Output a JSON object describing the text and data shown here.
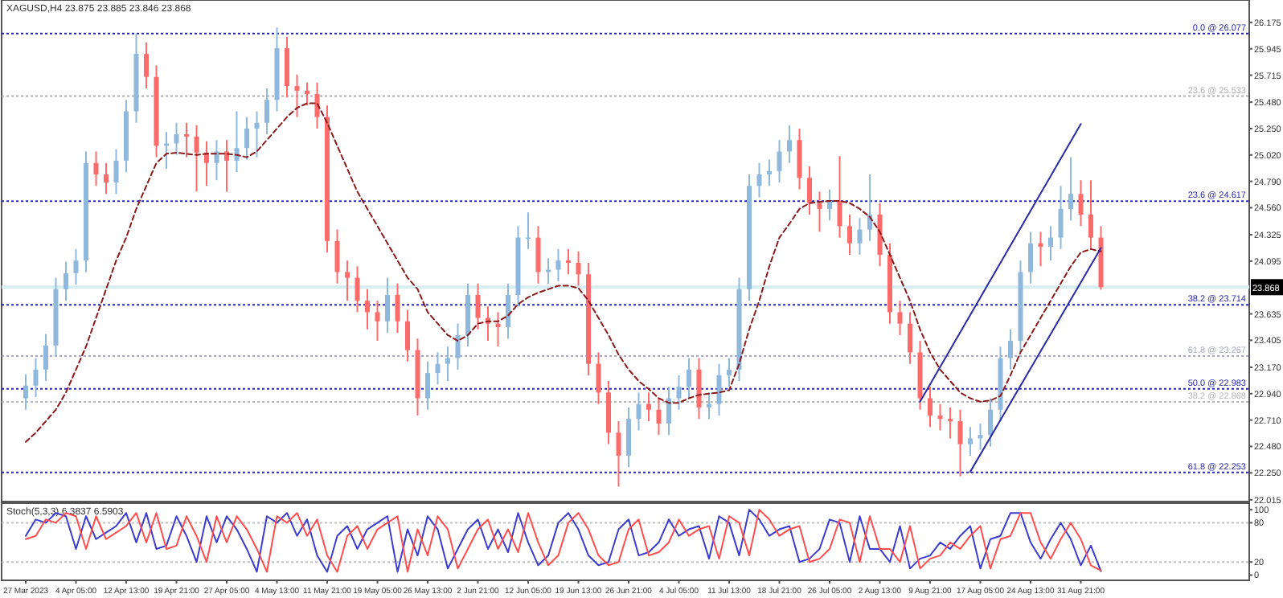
{
  "chart_data": [
    {
      "type": "candlestick",
      "title": "XAGUSD,H4 23.875 23.885 23.846 23.868",
      "categories": [
        null,
        null,
        null,
        null,
        null,
        null,
        null,
        null,
        null,
        null,
        null,
        null,
        null,
        null,
        null,
        null,
        null,
        null,
        null,
        null,
        null,
        null,
        null,
        null,
        null,
        null,
        null,
        null,
        null,
        null,
        null,
        null,
        null,
        null,
        null,
        null,
        null,
        null,
        null,
        null,
        null,
        null,
        null,
        null,
        null,
        null,
        null,
        null,
        null,
        null,
        null,
        null,
        null,
        null,
        null,
        null,
        null,
        null,
        null,
        null,
        null,
        null,
        null,
        null,
        null,
        null,
        null,
        null,
        null,
        null,
        null,
        null,
        null,
        null,
        null,
        null,
        null,
        null,
        null,
        null,
        null,
        null,
        null,
        null,
        null,
        null,
        null,
        null,
        null,
        null,
        null,
        null,
        null,
        null,
        null,
        null,
        null,
        null,
        null,
        null,
        null,
        null,
        null,
        null,
        null,
        null,
        null,
        null
      ],
      "ohlc": [
        [
          22.9,
          23.11,
          22.8,
          23.01
        ],
        [
          23.01,
          23.25,
          22.91,
          23.15
        ],
        [
          23.15,
          23.46,
          23.05,
          23.36
        ],
        [
          23.36,
          23.95,
          23.26,
          23.85
        ],
        [
          23.85,
          24.09,
          23.75,
          23.99
        ],
        [
          23.99,
          24.2,
          23.89,
          24.1
        ],
        [
          24.1,
          25.05,
          24.0,
          24.95
        ],
        [
          24.95,
          25.05,
          24.75,
          24.85
        ],
        [
          24.85,
          24.95,
          24.68,
          24.78
        ],
        [
          24.78,
          25.07,
          24.68,
          24.97
        ],
        [
          24.97,
          25.5,
          24.87,
          25.4
        ],
        [
          25.4,
          26.077,
          25.3,
          25.9
        ],
        [
          25.9,
          26.0,
          25.6,
          25.7
        ],
        [
          25.7,
          25.8,
          25.0,
          25.1
        ],
        [
          25.1,
          25.22,
          24.9,
          25.12
        ],
        [
          25.12,
          25.3,
          25.02,
          25.2
        ],
        [
          25.2,
          25.3,
          25.0,
          25.18
        ],
        [
          25.18,
          25.28,
          24.7,
          25.04
        ],
        [
          25.04,
          25.14,
          24.75,
          24.95
        ],
        [
          24.95,
          25.15,
          24.8,
          25.05
        ],
        [
          25.05,
          25.15,
          24.7,
          24.97
        ],
        [
          24.97,
          25.4,
          24.87,
          25.08
        ],
        [
          25.08,
          25.35,
          24.98,
          25.25
        ],
        [
          25.25,
          25.4,
          25.0,
          25.3
        ],
        [
          25.3,
          25.6,
          25.2,
          25.5
        ],
        [
          25.5,
          26.13,
          25.4,
          25.95
        ],
        [
          25.95,
          26.05,
          25.52,
          25.62
        ],
        [
          25.62,
          25.72,
          25.35,
          25.58
        ],
        [
          25.58,
          25.65,
          25.45,
          25.55
        ],
        [
          25.55,
          25.65,
          25.25,
          25.35
        ],
        [
          25.35,
          25.45,
          24.17,
          24.27
        ],
        [
          24.27,
          24.37,
          23.9,
          24.0
        ],
        [
          24.0,
          24.1,
          23.75,
          23.95
        ],
        [
          23.95,
          24.05,
          23.65,
          23.75
        ],
        [
          23.75,
          23.85,
          23.5,
          23.65
        ],
        [
          23.65,
          23.75,
          23.4,
          23.57
        ],
        [
          23.57,
          23.95,
          23.47,
          23.8
        ],
        [
          23.8,
          23.9,
          23.47,
          23.57
        ],
        [
          23.57,
          23.67,
          23.22,
          23.32
        ],
        [
          23.32,
          23.42,
          22.75,
          22.9
        ],
        [
          22.9,
          23.22,
          22.8,
          23.12
        ],
        [
          23.12,
          23.3,
          23.02,
          23.2
        ],
        [
          23.2,
          23.35,
          23.05,
          23.25
        ],
        [
          23.25,
          23.55,
          23.15,
          23.45
        ],
        [
          23.45,
          23.9,
          23.35,
          23.8
        ],
        [
          23.8,
          23.9,
          23.5,
          23.6
        ],
        [
          23.6,
          23.7,
          23.4,
          23.55
        ],
        [
          23.55,
          23.65,
          23.35,
          23.52
        ],
        [
          23.52,
          23.9,
          23.42,
          23.8
        ],
        [
          23.8,
          24.4,
          23.7,
          24.3
        ],
        [
          24.3,
          24.52,
          24.2,
          24.3
        ],
        [
          24.3,
          24.4,
          23.9,
          24.0
        ],
        [
          24.0,
          24.12,
          23.9,
          24.02
        ],
        [
          24.02,
          24.2,
          23.92,
          24.1
        ],
        [
          24.1,
          24.2,
          23.98,
          24.08
        ],
        [
          24.08,
          24.18,
          23.88,
          23.98
        ],
        [
          23.98,
          24.08,
          23.1,
          23.2
        ],
        [
          23.2,
          23.3,
          22.85,
          22.95
        ],
        [
          22.95,
          23.05,
          22.5,
          22.6
        ],
        [
          22.6,
          22.7,
          22.13,
          22.4
        ],
        [
          22.4,
          22.82,
          22.3,
          22.72
        ],
        [
          22.72,
          22.95,
          22.62,
          22.85
        ],
        [
          22.85,
          22.95,
          22.7,
          22.8
        ],
        [
          22.8,
          22.9,
          22.58,
          22.68
        ],
        [
          22.68,
          23.0,
          22.58,
          22.9
        ],
        [
          22.9,
          23.1,
          22.8,
          23.0
        ],
        [
          23.0,
          23.25,
          22.9,
          23.15
        ],
        [
          23.15,
          23.25,
          22.72,
          22.82
        ],
        [
          22.82,
          22.95,
          22.72,
          22.85
        ],
        [
          22.85,
          23.2,
          22.75,
          23.1
        ],
        [
          23.1,
          23.25,
          23.0,
          23.15
        ],
        [
          23.15,
          23.95,
          23.05,
          23.85
        ],
        [
          23.85,
          24.85,
          23.75,
          24.75
        ],
        [
          24.75,
          24.95,
          24.65,
          24.85
        ],
        [
          24.85,
          24.98,
          24.75,
          24.88
        ],
        [
          24.88,
          25.15,
          24.78,
          25.05
        ],
        [
          25.05,
          25.28,
          24.95,
          25.15
        ],
        [
          25.15,
          25.25,
          24.72,
          24.82
        ],
        [
          24.82,
          24.92,
          24.5,
          24.6
        ],
        [
          24.6,
          24.7,
          24.35,
          24.55
        ],
        [
          24.55,
          24.72,
          24.45,
          24.62
        ],
        [
          24.62,
          25.01,
          24.3,
          24.4
        ],
        [
          24.4,
          24.5,
          24.15,
          24.25
        ],
        [
          24.25,
          24.47,
          24.15,
          24.37
        ],
        [
          24.37,
          24.85,
          24.27,
          24.5
        ],
        [
          24.5,
          24.6,
          24.05,
          24.15
        ],
        [
          24.15,
          24.25,
          23.55,
          23.65
        ],
        [
          23.65,
          23.75,
          23.45,
          23.55
        ],
        [
          23.55,
          23.65,
          23.2,
          23.3
        ],
        [
          23.3,
          23.4,
          22.8,
          22.9
        ],
        [
          22.9,
          23.0,
          22.65,
          22.75
        ],
        [
          22.75,
          22.85,
          22.62,
          22.72
        ],
        [
          22.72,
          22.82,
          22.55,
          22.7
        ],
        [
          22.7,
          22.8,
          22.22,
          22.5
        ],
        [
          22.5,
          22.65,
          22.4,
          22.55
        ],
        [
          22.55,
          22.68,
          22.45,
          22.58
        ],
        [
          22.58,
          22.9,
          22.48,
          22.8
        ],
        [
          22.8,
          23.35,
          22.7,
          23.25
        ],
        [
          23.25,
          23.5,
          23.15,
          23.4
        ],
        [
          23.4,
          24.1,
          23.3,
          24.0
        ],
        [
          24.0,
          24.35,
          23.9,
          24.25
        ],
        [
          24.25,
          24.35,
          24.05,
          24.22
        ],
        [
          24.22,
          24.4,
          24.1,
          24.3
        ],
        [
          24.3,
          24.75,
          24.2,
          24.55
        ],
        [
          24.55,
          25.0,
          24.45,
          24.68
        ],
        [
          24.68,
          24.8,
          24.4,
          24.5
        ],
        [
          24.5,
          24.8,
          24.2,
          24.3
        ],
        [
          24.3,
          24.4,
          23.846,
          23.868
        ]
      ],
      "colors": [
        "#8fb8dc",
        "#8fb8dc",
        "#8fb8dc",
        "#8fb8dc",
        "#8fb8dc",
        "#8fb8dc",
        "#8fb8dc",
        "#ff6b6b",
        "#ff6b6b",
        "#8fb8dc",
        "#8fb8dc",
        "#8fb8dc",
        "#ff6b6b",
        "#ff6b6b",
        "#8fb8dc",
        "#8fb8dc",
        "#ff6b6b",
        "#ff6b6b",
        "#ff6b6b",
        "#8fb8dc",
        "#ff6b6b",
        "#8fb8dc",
        "#8fb8dc",
        "#8fb8dc",
        "#8fb8dc",
        "#8fb8dc",
        "#ff6b6b",
        "#ff6b6b",
        "#ff6b6b",
        "#ff6b6b",
        "#ff6b6b",
        "#ff6b6b",
        "#ff6b6b",
        "#ff6b6b",
        "#ff6b6b",
        "#ff6b6b",
        "#8fb8dc",
        "#ff6b6b",
        "#ff6b6b",
        "#ff6b6b",
        "#8fb8dc",
        "#8fb8dc",
        "#8fb8dc",
        "#8fb8dc",
        "#8fb8dc",
        "#ff6b6b",
        "#ff6b6b",
        "#ff6b6b",
        "#8fb8dc",
        "#8fb8dc",
        "#8fb8dc",
        "#ff6b6b",
        "#8fb8dc",
        "#8fb8dc",
        "#ff6b6b",
        "#ff6b6b",
        "#ff6b6b",
        "#ff6b6b",
        "#ff6b6b",
        "#ff6b6b",
        "#8fb8dc",
        "#8fb8dc",
        "#ff6b6b",
        "#ff6b6b",
        "#8fb8dc",
        "#8fb8dc",
        "#8fb8dc",
        "#ff6b6b",
        "#8fb8dc",
        "#8fb8dc",
        "#8fb8dc",
        "#8fb8dc",
        "#8fb8dc",
        "#8fb8dc",
        "#8fb8dc",
        "#8fb8dc",
        "#8fb8dc",
        "#ff6b6b",
        "#ff6b6b",
        "#ff6b6b",
        "#8fb8dc",
        "#ff6b6b",
        "#ff6b6b",
        "#8fb8dc",
        "#8fb8dc",
        "#ff6b6b",
        "#ff6b6b",
        "#ff6b6b",
        "#ff6b6b",
        "#ff6b6b",
        "#ff6b6b",
        "#ff6b6b",
        "#ff6b6b",
        "#ff6b6b",
        "#8fb8dc",
        "#8fb8dc",
        "#8fb8dc",
        "#8fb8dc",
        "#8fb8dc",
        "#8fb8dc",
        "#8fb8dc",
        "#ff6b6b",
        "#8fb8dc",
        "#8fb8dc",
        "#8fb8dc",
        "#ff6b6b",
        "#ff6b6b",
        "#ff6b6b"
      ],
      "series": [
        {
          "type": "line",
          "color": "#8b1a1a",
          "line_style": "dashed",
          "values": [
            22.52,
            22.6,
            22.7,
            22.8,
            22.95,
            23.15,
            23.35,
            23.6,
            23.85,
            24.1,
            24.3,
            24.55,
            24.75,
            24.95,
            25.03,
            25.04,
            25.03,
            25.02,
            25.03,
            25.03,
            25.03,
            25.02,
            25.0,
            25.05,
            25.15,
            25.25,
            25.35,
            25.43,
            25.47,
            25.47,
            25.3,
            25.1,
            24.9,
            24.7,
            24.55,
            24.4,
            24.25,
            24.1,
            23.95,
            23.85,
            23.65,
            23.55,
            23.45,
            23.4,
            23.45,
            23.55,
            23.57,
            23.57,
            23.62,
            23.72,
            23.78,
            23.82,
            23.85,
            23.88,
            23.88,
            23.86,
            23.75,
            23.6,
            23.45,
            23.28,
            23.15,
            23.05,
            22.98,
            22.9,
            22.86,
            22.86,
            22.9,
            22.93,
            22.94,
            22.95,
            22.97,
            23.2,
            23.5,
            23.75,
            24.05,
            24.3,
            24.42,
            24.55,
            24.6,
            24.61,
            24.62,
            24.62,
            24.6,
            24.55,
            24.48,
            24.35,
            24.15,
            23.95,
            23.75,
            23.5,
            23.3,
            23.15,
            23.05,
            22.95,
            22.9,
            22.87,
            22.88,
            22.92,
            23.1,
            23.3,
            23.45,
            23.6,
            23.75,
            23.9,
            24.05,
            24.17,
            24.2,
            24.18
          ]
        },
        {
          "type": "line",
          "color": "#2a2aa8",
          "values": [
            null,
            null,
            null,
            null,
            null,
            null,
            null,
            null,
            null,
            null,
            null,
            null,
            null,
            null,
            null,
            null,
            null,
            null,
            null,
            null,
            null,
            null,
            null,
            null,
            null,
            null,
            null,
            null,
            null,
            null,
            null,
            null,
            null,
            null,
            null,
            null,
            null,
            null,
            null,
            null,
            null,
            null,
            null,
            null,
            null,
            null,
            null,
            null,
            null,
            null,
            null,
            null,
            null,
            null,
            null,
            null,
            null,
            null,
            null,
            null,
            null,
            null,
            null,
            null,
            null,
            null,
            null,
            null,
            null,
            null,
            null,
            null,
            null,
            null,
            null,
            null,
            null,
            null,
            null,
            null,
            null,
            null,
            null,
            null,
            null,
            null,
            null,
            null,
            null,
            22.87,
            null,
            null,
            null,
            null,
            null,
            null,
            null,
            null,
            null,
            null,
            null,
            null,
            null,
            null,
            null,
            25.29,
            null,
            null
          ]
        },
        {
          "type": "line",
          "color": "#2a2aa8",
          "values": [
            null,
            null,
            null,
            null,
            null,
            null,
            null,
            null,
            null,
            null,
            null,
            null,
            null,
            null,
            null,
            null,
            null,
            null,
            null,
            null,
            null,
            null,
            null,
            null,
            null,
            null,
            null,
            null,
            null,
            null,
            null,
            null,
            null,
            null,
            null,
            null,
            null,
            null,
            null,
            null,
            null,
            null,
            null,
            null,
            null,
            null,
            null,
            null,
            null,
            null,
            null,
            null,
            null,
            null,
            null,
            null,
            null,
            null,
            null,
            null,
            null,
            null,
            null,
            null,
            null,
            null,
            null,
            null,
            null,
            null,
            null,
            null,
            null,
            null,
            null,
            null,
            null,
            null,
            null,
            null,
            null,
            null,
            null,
            null,
            null,
            null,
            null,
            null,
            null,
            null,
            null,
            null,
            null,
            null,
            22.26,
            null,
            null,
            null,
            null,
            null,
            null,
            null,
            null,
            null,
            null,
            null,
            null,
            24.21
          ]
        }
      ],
      "ylim": [
        22.0,
        26.37
      ],
      "yticks": [
        26.175,
        25.945,
        25.715,
        {
          "value": 25.48,
          "label": "25.480"
        },
        {
          "value": 25.25,
          "label": "25.250"
        },
        {
          "value": 25.02,
          "label": "25.020"
        },
        {
          "value": 24.79,
          "label": "24.790"
        },
        {
          "value": 24.56,
          "label": "24.560"
        },
        24.325,
        24.095,
        23.635,
        23.405,
        {
          "value": 23.17,
          "label": "23.170"
        },
        {
          "value": 22.94,
          "label": "22.940"
        },
        {
          "value": 22.71,
          "label": "22.710"
        },
        {
          "value": 22.48,
          "label": "22.480"
        },
        {
          "value": 22.25,
          "label": "22.250"
        },
        22.015
      ],
      "tick_labels": "y",
      "ref_lines": [
        {
          "axis": "y",
          "value": 26.077,
          "label": "0.0 @ 26.077",
          "color": "#2a2aa8",
          "line_style": "dotted"
        },
        {
          "axis": "y",
          "value": 25.533,
          "label": "23.6 @ 25.533",
          "color": "#b0b0b0",
          "line_style": "dotted"
        },
        {
          "axis": "y",
          "value": 24.617,
          "label": "23.6 @ 24.617",
          "color": "#2a2aa8",
          "line_style": "dotted"
        },
        {
          "axis": "y",
          "value": 23.868,
          "label": "23.868",
          "color": "#d6eef0",
          "line_style": "solid"
        },
        {
          "axis": "y",
          "value": 23.714,
          "label": "38.2 @ 23.714",
          "color": "#2a2aa8",
          "line_style": "dotted"
        },
        {
          "axis": "y",
          "value": 23.267,
          "label": "61.8 @ 23.267",
          "color": "#a8a8c4",
          "line_style": "dotted"
        },
        {
          "axis": "y",
          "value": 22.983,
          "label": "50.0 @ 22.983",
          "color": "#2a2aa8",
          "line_style": "dotted"
        },
        {
          "axis": "y",
          "value": 22.868,
          "label": "38.2 @ 22.868",
          "color": "#b8b8b8",
          "line_style": "dotted"
        },
        {
          "axis": "y",
          "value": 22.253,
          "label": "61.8 @ 22.253",
          "color": "#2a2aa8",
          "line_style": "dotted"
        }
      ]
    },
    {
      "type": "line",
      "title": "Stoch(5,3,3) 6.3837 6.5903",
      "categories": [
        "27 Mar 2023",
        null,
        null,
        null,
        null,
        "4 Apr 05:00",
        null,
        null,
        null,
        null,
        "12 Apr 13:00",
        null,
        null,
        null,
        null,
        "19 Apr 21:00",
        null,
        null,
        null,
        null,
        "27 Apr 05:00",
        null,
        null,
        null,
        null,
        "4 May 13:00",
        null,
        null,
        null,
        null,
        "11 May 21:00",
        null,
        null,
        null,
        null,
        "19 May 05:00",
        null,
        null,
        null,
        null,
        "26 May 13:00",
        null,
        null,
        null,
        null,
        "2 Jun 21:00",
        null,
        null,
        null,
        null,
        "12 Jun 05:00",
        null,
        null,
        null,
        null,
        "19 Jun 13:00",
        null,
        null,
        null,
        null,
        "26 Jun 21:00",
        null,
        null,
        null,
        null,
        "4 Jul 05:00",
        null,
        null,
        null,
        null,
        "11 Jul 13:00",
        null,
        null,
        null,
        null,
        "18 Jul 21:00",
        null,
        null,
        null,
        null,
        "26 Jul 05:00",
        null,
        null,
        null,
        null,
        "2 Aug 13:00",
        null,
        null,
        null,
        null,
        "9 Aug 21:00",
        null,
        null,
        null,
        null,
        "17 Aug 05:00",
        null,
        null,
        null,
        null,
        "24 Aug 13:00",
        null,
        null,
        null,
        null,
        "31 Aug 21:00",
        null,
        null
      ],
      "series": [
        {
          "color": "#3b3bd0",
          "values": [
            60,
            85,
            80,
            95,
            90,
            40,
            90,
            55,
            65,
            75,
            95,
            50,
            95,
            40,
            45,
            90,
            60,
            20,
            90,
            50,
            90,
            70,
            40,
            5,
            90,
            80,
            95,
            60,
            85,
            30,
            5,
            60,
            75,
            40,
            70,
            80,
            90,
            5,
            70,
            30,
            90,
            70,
            10,
            40,
            70,
            85,
            40,
            70,
            35,
            95,
            50,
            15,
            30,
            80,
            95,
            70,
            30,
            15,
            20,
            70,
            85,
            30,
            35,
            50,
            85,
            60,
            70,
            75,
            25,
            90,
            80,
            30,
            100,
            85,
            60,
            70,
            75,
            20,
            25,
            40,
            85,
            80,
            20,
            90,
            40,
            40,
            20,
            75,
            10,
            25,
            30,
            50,
            40,
            60,
            75,
            10,
            55,
            60,
            95,
            95,
            50,
            25,
            55,
            80,
            55,
            15,
            45,
            6
          ]
        },
        {
          "color": "#ff4d4d",
          "values": [
            55,
            60,
            85,
            80,
            95,
            90,
            40,
            90,
            55,
            65,
            75,
            95,
            50,
            95,
            40,
            45,
            90,
            60,
            20,
            90,
            50,
            90,
            70,
            40,
            5,
            90,
            80,
            95,
            60,
            85,
            30,
            5,
            60,
            75,
            40,
            70,
            80,
            90,
            5,
            70,
            30,
            90,
            70,
            10,
            40,
            70,
            85,
            40,
            70,
            35,
            95,
            50,
            15,
            30,
            80,
            95,
            70,
            30,
            15,
            20,
            70,
            85,
            30,
            35,
            50,
            85,
            60,
            70,
            75,
            25,
            90,
            80,
            30,
            100,
            85,
            60,
            70,
            75,
            20,
            25,
            40,
            85,
            80,
            20,
            90,
            40,
            40,
            20,
            75,
            10,
            25,
            30,
            50,
            40,
            60,
            75,
            10,
            55,
            60,
            95,
            95,
            50,
            25,
            55,
            80,
            55,
            15,
            7
          ]
        }
      ],
      "ylim": [
        -8,
        110
      ],
      "yticks": [
        100,
        80,
        20,
        0
      ],
      "ref_lines": [
        {
          "axis": "y",
          "value": 80,
          "color": "#c0c0c0",
          "line_style": "dotted"
        },
        {
          "axis": "y",
          "value": 20,
          "color": "#c0c0c0",
          "line_style": "dotted"
        }
      ]
    }
  ]
}
